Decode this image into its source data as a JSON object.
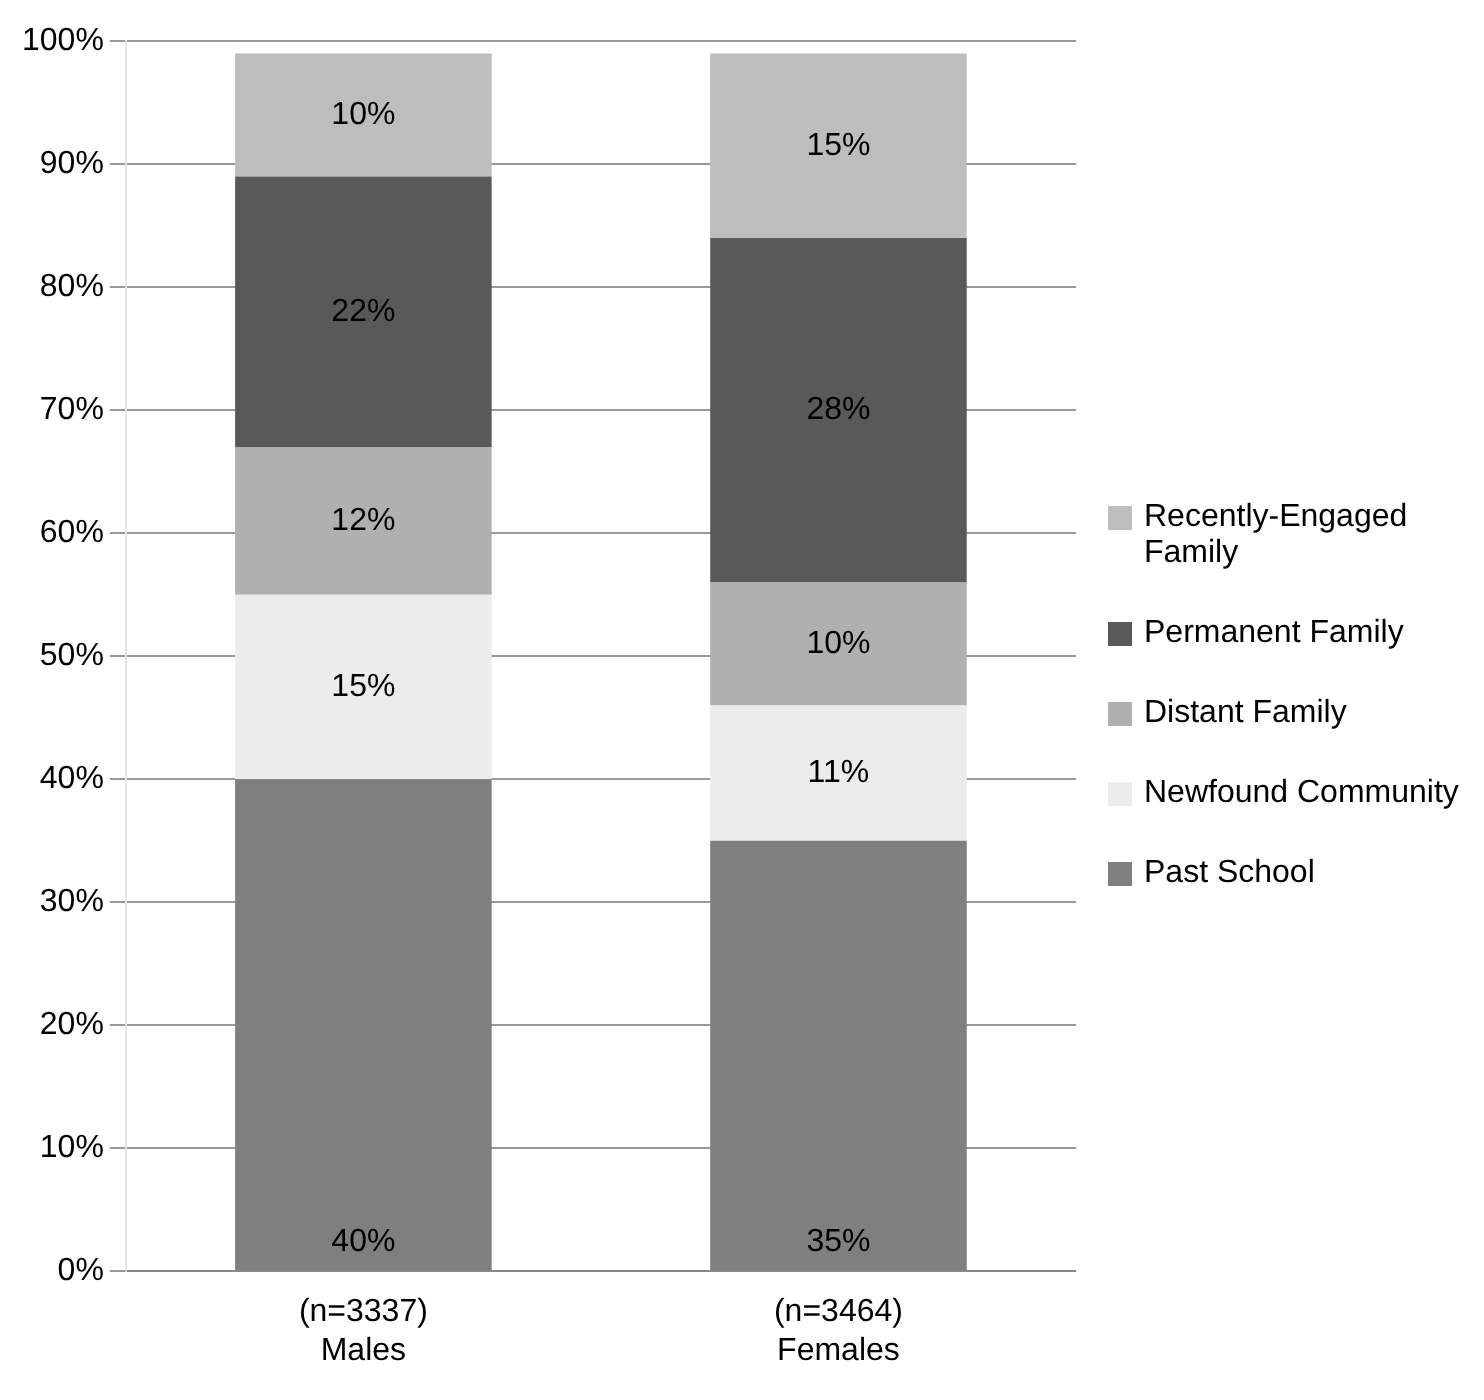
{
  "chart_data": {
    "type": "bar",
    "stacked": true,
    "categories": [
      "(n=3337)\nMales",
      "(n=3464)\nFemales"
    ],
    "series": [
      {
        "name": "Past School",
        "color": "#7f7f7f",
        "values": [
          40,
          35
        ],
        "value_labels": [
          "40%",
          "35%"
        ]
      },
      {
        "name": "Newfound Community",
        "color": "#ececec",
        "values": [
          15,
          11
        ],
        "value_labels": [
          "15%",
          "11%"
        ]
      },
      {
        "name": "Distant Family",
        "color": "#b0b0b0",
        "values": [
          12,
          10
        ],
        "value_labels": [
          "12%",
          "10%"
        ]
      },
      {
        "name": "Permanent Family",
        "color": "#595959",
        "values": [
          22,
          28
        ],
        "value_labels": [
          "22%",
          "28%"
        ]
      },
      {
        "name": "Recently-Engaged Family",
        "color": "#bdbdbd",
        "values": [
          10,
          15
        ],
        "value_labels": [
          "10%",
          "15%"
        ]
      }
    ],
    "ylim": [
      0,
      100
    ],
    "yticks": [
      {
        "value": 0,
        "label": "0%"
      },
      {
        "value": 10,
        "label": "10%"
      },
      {
        "value": 20,
        "label": "20%"
      },
      {
        "value": 30,
        "label": "30%"
      },
      {
        "value": 40,
        "label": "40%"
      },
      {
        "value": 50,
        "label": "50%"
      },
      {
        "value": 60,
        "label": "60%"
      },
      {
        "value": 70,
        "label": "70%"
      },
      {
        "value": 80,
        "label": "80%"
      },
      {
        "value": 90,
        "label": "90%"
      },
      {
        "value": 100,
        "label": "100%"
      }
    ],
    "grid": "y",
    "legend": "right"
  }
}
